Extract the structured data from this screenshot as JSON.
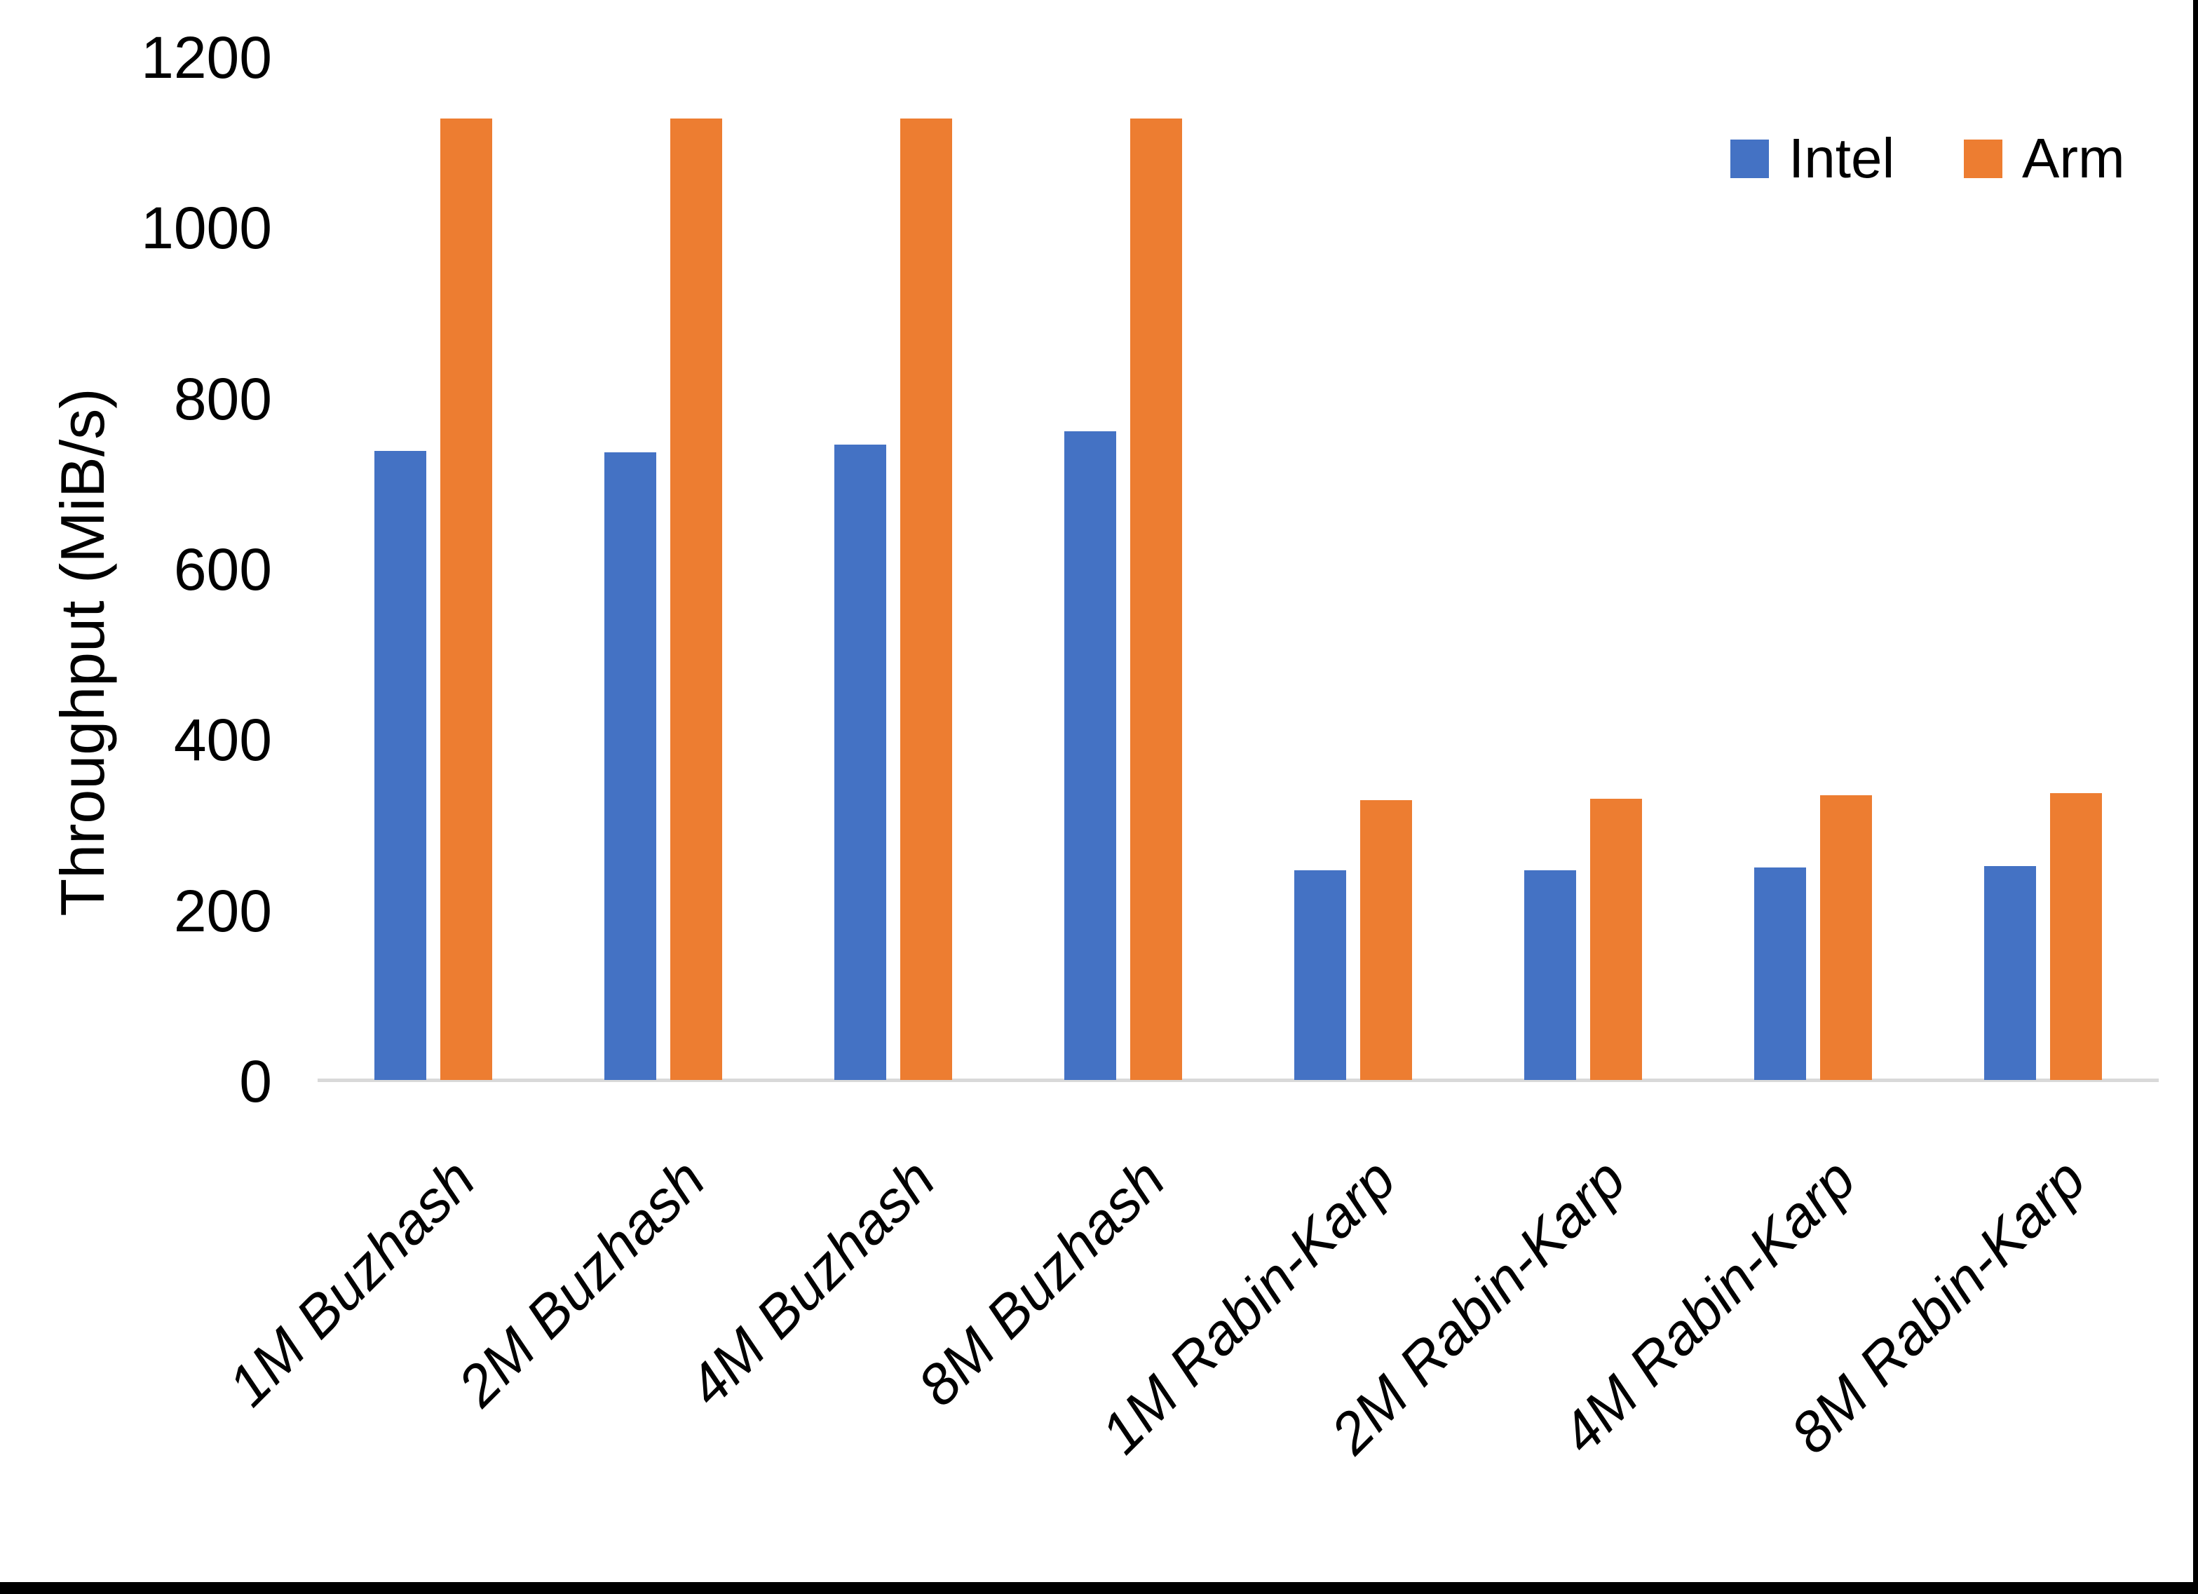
{
  "chart_data": {
    "type": "bar",
    "categories": [
      "1M Buzhash",
      "2M Buzhash",
      "4M Buzhash",
      "8M Buzhash",
      "1M Rabin-Karp",
      "2M Rabin-Karp",
      "4M Rabin-Karp",
      "8M Rabin-Karp"
    ],
    "series": [
      {
        "name": "Intel",
        "color": "#4472C4",
        "values": [
          737,
          736,
          745,
          760,
          246,
          246,
          249,
          251
        ]
      },
      {
        "name": "Arm",
        "color": "#ED7D31",
        "values": [
          1127,
          1127,
          1127,
          1127,
          328,
          330,
          334,
          336
        ]
      }
    ],
    "title": "",
    "xlabel": "",
    "ylabel": "Throughput (MiB/s)",
    "ylim": [
      0,
      1200
    ],
    "yticks": [
      0,
      200,
      400,
      600,
      800,
      1000,
      1200
    ],
    "grid": false,
    "legend_position": "top-right"
  },
  "frame": {
    "background": "#FFFFFF",
    "axis_line_color": "#D9D9D9",
    "text_color": "#000000",
    "border_color": "#000000"
  }
}
